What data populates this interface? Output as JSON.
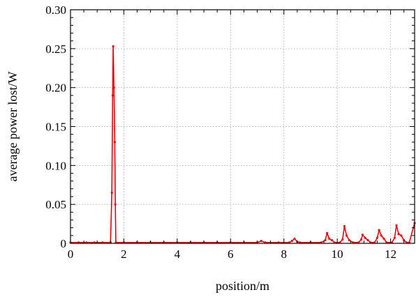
{
  "chart_data": {
    "type": "line",
    "title": "",
    "xlabel": "position/m",
    "ylabel": "average power lost/W",
    "xlim": [
      0,
      12.9
    ],
    "ylim": [
      0,
      0.3
    ],
    "x_ticks": [
      0,
      2,
      4,
      6,
      8,
      10,
      12
    ],
    "x_tick_labels": [
      "0",
      "2",
      "4",
      "6",
      "8",
      "10",
      "12"
    ],
    "y_ticks": [
      0,
      0.05,
      0.1,
      0.15,
      0.2,
      0.25,
      0.3
    ],
    "y_tick_labels": [
      "0",
      "0.05",
      "0.10",
      "0.15",
      "0.20",
      "0.25",
      "0.30"
    ],
    "grid": true,
    "legend": "none",
    "series": [
      {
        "color": "#e8000b",
        "marker": "circle",
        "points": [
          [
            0.0,
            0.001
          ],
          [
            0.3,
            0.001
          ],
          [
            0.6,
            0.001
          ],
          [
            0.9,
            0.001
          ],
          [
            1.2,
            0.001
          ],
          [
            1.5,
            0.001
          ],
          [
            1.55,
            0.065
          ],
          [
            1.58,
            0.19
          ],
          [
            1.6,
            0.253
          ],
          [
            1.63,
            0.2
          ],
          [
            1.66,
            0.13
          ],
          [
            1.68,
            0.05
          ],
          [
            1.7,
            0.001
          ],
          [
            2.0,
            0.001
          ],
          [
            2.5,
            0.001
          ],
          [
            3.0,
            0.001
          ],
          [
            3.5,
            0.001
          ],
          [
            4.0,
            0.001
          ],
          [
            4.5,
            0.001
          ],
          [
            5.0,
            0.001
          ],
          [
            5.5,
            0.001
          ],
          [
            6.0,
            0.001
          ],
          [
            6.5,
            0.001
          ],
          [
            7.0,
            0.001
          ],
          [
            7.15,
            0.003
          ],
          [
            7.3,
            0.001
          ],
          [
            7.8,
            0.001
          ],
          [
            8.2,
            0.001
          ],
          [
            8.3,
            0.003
          ],
          [
            8.4,
            0.006
          ],
          [
            8.5,
            0.002
          ],
          [
            8.6,
            0.001
          ],
          [
            9.0,
            0.001
          ],
          [
            9.4,
            0.001
          ],
          [
            9.55,
            0.004
          ],
          [
            9.62,
            0.013
          ],
          [
            9.7,
            0.006
          ],
          [
            9.8,
            0.004
          ],
          [
            9.9,
            0.001
          ],
          [
            10.1,
            0.001
          ],
          [
            10.2,
            0.005
          ],
          [
            10.27,
            0.022
          ],
          [
            10.35,
            0.01
          ],
          [
            10.45,
            0.004
          ],
          [
            10.6,
            0.001
          ],
          [
            10.8,
            0.001
          ],
          [
            10.9,
            0.005
          ],
          [
            10.95,
            0.011
          ],
          [
            11.05,
            0.007
          ],
          [
            11.15,
            0.004
          ],
          [
            11.25,
            0.001
          ],
          [
            11.4,
            0.001
          ],
          [
            11.5,
            0.007
          ],
          [
            11.57,
            0.017
          ],
          [
            11.65,
            0.01
          ],
          [
            11.75,
            0.006
          ],
          [
            11.85,
            0.001
          ],
          [
            12.05,
            0.001
          ],
          [
            12.15,
            0.007
          ],
          [
            12.22,
            0.023
          ],
          [
            12.3,
            0.012
          ],
          [
            12.4,
            0.01
          ],
          [
            12.5,
            0.004
          ],
          [
            12.6,
            0.001
          ],
          [
            12.7,
            0.001
          ],
          [
            12.9,
            0.026
          ]
        ]
      }
    ]
  }
}
